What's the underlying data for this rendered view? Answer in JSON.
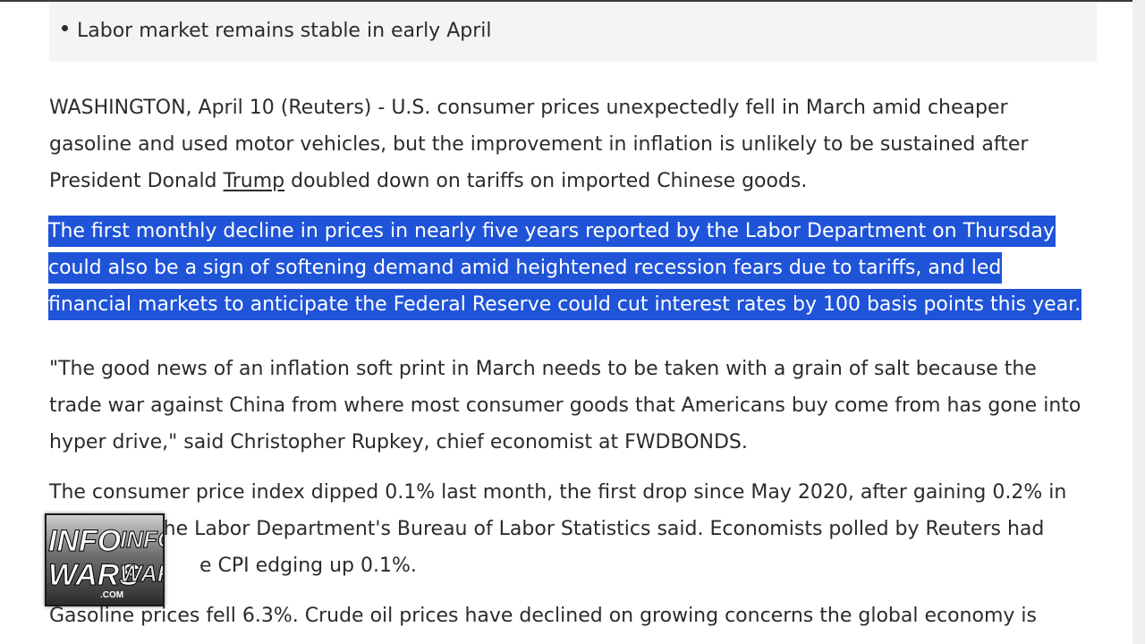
{
  "summary": {
    "items": [
      {
        "text": "Labor market remains stable in early April"
      }
    ]
  },
  "article": {
    "p1": {
      "line1": "WASHINGTON, April 10 (Reuters) - U.S. consumer prices unexpectedly fell in March amid cheaper",
      "line2": "gasoline and used motor vehicles, but the improvement in inflation is unlikely to be sustained after",
      "line3_pre": "President Donald ",
      "link": "Trump",
      "line3_post": " doubled down on tariffs on imported Chinese goods."
    },
    "p2": {
      "line1": "The first monthly decline in prices in nearly five years reported by the Labor Department on Thursday",
      "line2": "could also be a sign of softening demand amid heightened recession fears due to tariffs, and led",
      "line3": "financial markets to anticipate the Federal Reserve could cut interest rates by 100 basis points this year."
    },
    "p3": {
      "line1": "\"The good news of an inflation soft print in March needs to be taken with a grain of salt because the",
      "line2": "trade war against China from where most consumer goods that Americans buy come from has gone into",
      "line3": "hyper drive,\" said Christopher Rupkey, chief economist at FWDBONDS."
    },
    "p4": {
      "line1": "The consumer price index dipped 0.1% last month, the first drop since May 2020, after gaining 0.2% in",
      "line2": "the Labor Department's Bureau of Labor Statistics said. Economists polled by Reuters had",
      "line3": "e CPI edging up 0.1%."
    },
    "p5": {
      "line1": "Gasoline prices fell 6.3%. Crude oil prices have declined on growing concerns the global economy is"
    }
  },
  "watermark": {
    "text_top": "INFO",
    "text_top2": "INFO",
    "text_bottom": "WARS",
    "text_bottom2": "WARS",
    "text_com": ".COM"
  }
}
